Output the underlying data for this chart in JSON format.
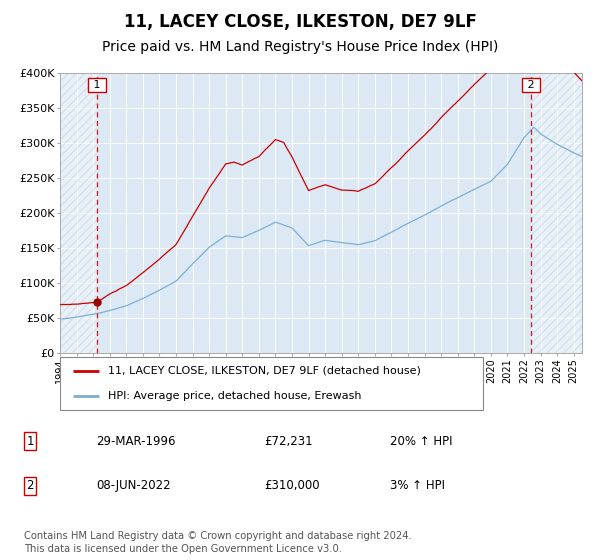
{
  "title": "11, LACEY CLOSE, ILKESTON, DE7 9LF",
  "subtitle": "Price paid vs. HM Land Registry's House Price Index (HPI)",
  "background_color": "white",
  "plot_bg_color": "#dce9f5",
  "hpi_line_color": "#7ab0d4",
  "price_line_color": "#cc0000",
  "marker_color": "#990000",
  "dashed_line_color": "#cc0000",
  "ylim": [
    0,
    400000
  ],
  "yticks": [
    0,
    50000,
    100000,
    150000,
    200000,
    250000,
    300000,
    350000,
    400000
  ],
  "ytick_labels": [
    "£0",
    "£50K",
    "£100K",
    "£150K",
    "£200K",
    "£250K",
    "£300K",
    "£350K",
    "£400K"
  ],
  "xmin": 1994.0,
  "xmax": 2025.5,
  "sale1_date": 1996.24,
  "sale1_price": 72231,
  "sale2_date": 2022.44,
  "sale2_price": 310000,
  "legend_entry1": "11, LACEY CLOSE, ILKESTON, DE7 9LF (detached house)",
  "legend_entry2": "HPI: Average price, detached house, Erewash",
  "table_row1": [
    "1",
    "29-MAR-1996",
    "£72,231",
    "20% ↑ HPI"
  ],
  "table_row2": [
    "2",
    "08-JUN-2022",
    "£310,000",
    "3% ↑ HPI"
  ],
  "footer": "Contains HM Land Registry data © Crown copyright and database right 2024.\nThis data is licensed under the Open Government Licence v3.0.",
  "grid_color": "#ffffff",
  "hatch_color": "#c8d8e8",
  "hpi_anchors": [
    [
      1994.0,
      48000
    ],
    [
      1995.0,
      51000
    ],
    [
      1996.0,
      55000
    ],
    [
      1997.0,
      61000
    ],
    [
      1998.0,
      68000
    ],
    [
      1999.0,
      78000
    ],
    [
      2000.0,
      90000
    ],
    [
      2001.0,
      103000
    ],
    [
      2002.0,
      128000
    ],
    [
      2003.0,
      152000
    ],
    [
      2004.0,
      168000
    ],
    [
      2005.0,
      166000
    ],
    [
      2006.0,
      176000
    ],
    [
      2007.0,
      188000
    ],
    [
      2008.0,
      180000
    ],
    [
      2009.0,
      155000
    ],
    [
      2010.0,
      163000
    ],
    [
      2011.0,
      160000
    ],
    [
      2012.0,
      157000
    ],
    [
      2013.0,
      163000
    ],
    [
      2014.0,
      175000
    ],
    [
      2015.0,
      188000
    ],
    [
      2016.0,
      200000
    ],
    [
      2017.0,
      213000
    ],
    [
      2018.0,
      225000
    ],
    [
      2019.0,
      237000
    ],
    [
      2020.0,
      248000
    ],
    [
      2021.0,
      272000
    ],
    [
      2022.0,
      310000
    ],
    [
      2022.6,
      325000
    ],
    [
      2023.0,
      315000
    ],
    [
      2024.0,
      300000
    ],
    [
      2025.0,
      288000
    ],
    [
      2025.5,
      283000
    ]
  ],
  "price_premium_anchors": [
    [
      1994.0,
      1.12
    ],
    [
      1996.24,
      1.0
    ],
    [
      1997.0,
      1.08
    ],
    [
      1999.0,
      1.15
    ],
    [
      2001.0,
      1.18
    ],
    [
      2003.0,
      1.22
    ],
    [
      2004.5,
      1.28
    ],
    [
      2006.0,
      1.25
    ],
    [
      2007.5,
      1.28
    ],
    [
      2008.0,
      1.22
    ],
    [
      2009.0,
      1.18
    ],
    [
      2011.0,
      1.15
    ],
    [
      2013.0,
      1.18
    ],
    [
      2015.0,
      1.22
    ],
    [
      2017.0,
      1.25
    ],
    [
      2019.0,
      1.28
    ],
    [
      2021.0,
      1.3
    ],
    [
      2022.44,
      1.28
    ],
    [
      2023.0,
      1.2
    ],
    [
      2024.0,
      1.12
    ],
    [
      2025.5,
      1.08
    ]
  ],
  "noise_seed": 12,
  "noise_scale_hpi": 1800,
  "noise_scale_price": 2200,
  "title_fontsize": 12,
  "subtitle_fontsize": 10,
  "tick_fontsize": 8
}
